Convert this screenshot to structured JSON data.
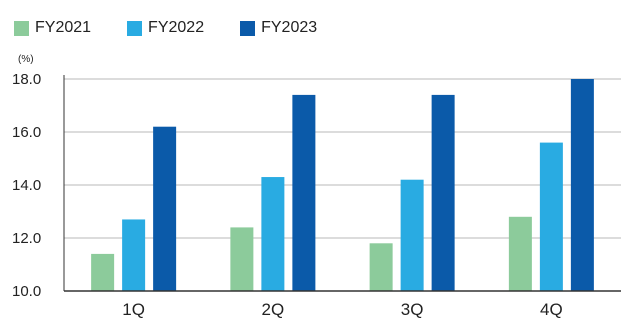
{
  "chart_data": {
    "type": "bar",
    "title": "",
    "ylabel": "(%)",
    "xlabel": "",
    "categories": [
      "1Q",
      "2Q",
      "3Q",
      "4Q"
    ],
    "series": [
      {
        "name": "FY2021",
        "color": "#8ccb9b",
        "values": [
          11.4,
          12.4,
          11.8,
          12.8
        ]
      },
      {
        "name": "FY2022",
        "color": "#29abe2",
        "values": [
          12.7,
          14.3,
          14.2,
          15.6
        ]
      },
      {
        "name": "FY2023",
        "color": "#0b5aa9",
        "values": [
          16.2,
          17.4,
          17.4,
          18.0
        ]
      }
    ],
    "ylim": [
      10.0,
      18.0
    ],
    "yticks": [
      "10.0",
      "12.0",
      "14.0",
      "16.0",
      "18.0"
    ],
    "grid": true,
    "legend_position": "top-left"
  },
  "colors": {
    "grid": "#b9b9b9",
    "axis": "#333333"
  }
}
